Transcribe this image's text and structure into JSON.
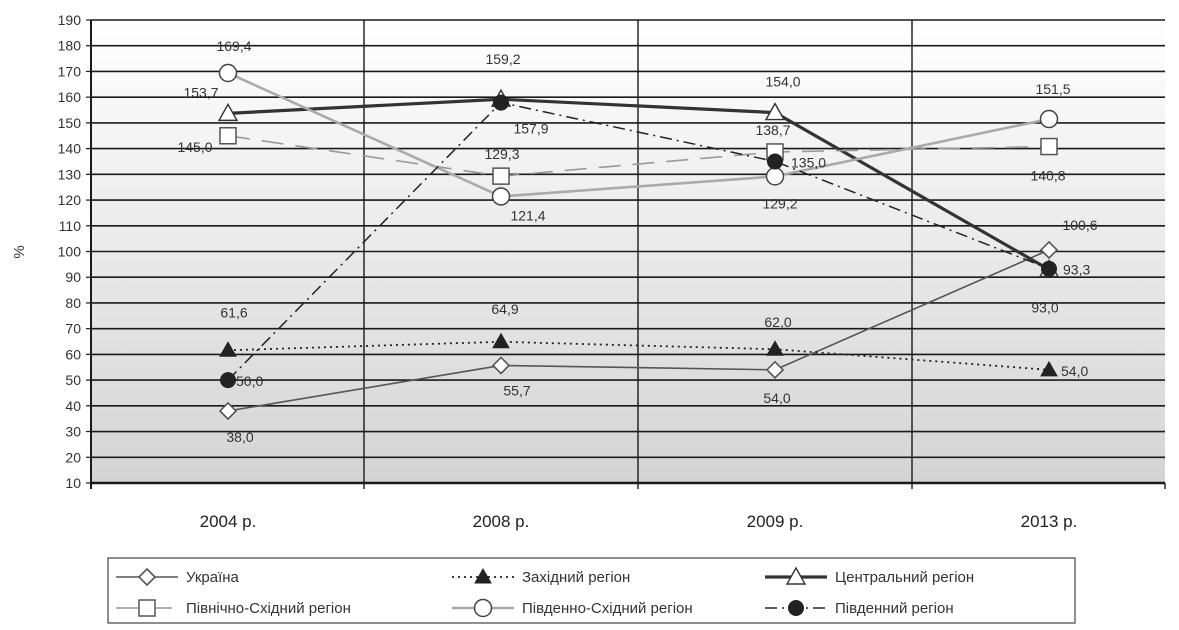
{
  "chart_data": {
    "type": "line",
    "title": "",
    "xlabel": "",
    "ylabel": "%",
    "categories": [
      "2004 р.",
      "2008 р.",
      "2009 р.",
      "2013 р."
    ],
    "ylim": [
      10,
      190
    ],
    "ytick_step": 10,
    "grid": true,
    "legend_position": "bottom",
    "series": [
      {
        "name": "Україна",
        "values": [
          38.0,
          55.7,
          54.0,
          100.6
        ],
        "labels": [
          "38,0",
          "55,7",
          "54,0",
          "100,6"
        ],
        "marker": "diamond-open",
        "line": "solid-thin",
        "color": "#555555"
      },
      {
        "name": "Західний регіон",
        "values": [
          61.6,
          64.9,
          62.0,
          54.0
        ],
        "labels": [
          "61,6",
          "64,9",
          "62,0",
          "54,0"
        ],
        "marker": "triangle-filled",
        "line": "dotted",
        "color": "#222222"
      },
      {
        "name": "Центральний регіон",
        "values": [
          153.7,
          159.2,
          154.0,
          93.0
        ],
        "labels": [
          "153,7",
          "159,2",
          "154,0",
          "93,0"
        ],
        "marker": "triangle-open",
        "line": "solid-thick",
        "color": "#333333"
      },
      {
        "name": "Північно-Східний регіон",
        "values": [
          145.0,
          129.3,
          138.7,
          140.8
        ],
        "labels": [
          "145,0",
          "129,3",
          "138,7",
          "140,8"
        ],
        "marker": "square-open",
        "line": "dashed-long",
        "color": "#999999"
      },
      {
        "name": "Південно-Східний регіон",
        "values": [
          169.4,
          121.4,
          129.2,
          151.5
        ],
        "labels": [
          "169,4",
          "121,4",
          "129,2",
          "151,5"
        ],
        "marker": "circle-open",
        "line": "solid-medium",
        "color": "#aaaaaa"
      },
      {
        "name": "Південний регіон",
        "values": [
          50.0,
          157.9,
          135.0,
          93.3
        ],
        "labels": [
          "50,0",
          "157,9",
          "135,0",
          "93,3"
        ],
        "marker": "circle-filled",
        "line": "dash-dot",
        "color": "#222222"
      }
    ]
  }
}
